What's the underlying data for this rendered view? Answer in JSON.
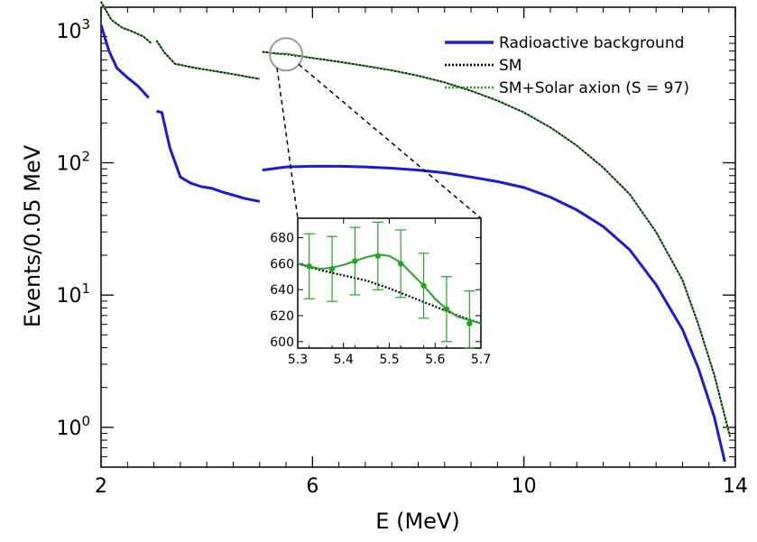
{
  "chart_data": {
    "type": "line",
    "xlabel": "E (MeV)",
    "ylabel": "Events/0.05 MeV",
    "xlim": [
      2,
      14
    ],
    "ylim": [
      0.5,
      1500
    ],
    "yscale": "log",
    "x_ticks": [
      2,
      6,
      10,
      14
    ],
    "y_ticks": [
      {
        "value": 1,
        "base": "10",
        "exp": "0"
      },
      {
        "value": 10,
        "base": "10",
        "exp": "1"
      },
      {
        "value": 100,
        "base": "10",
        "exp": "2"
      },
      {
        "value": 1000,
        "base": "10",
        "exp": "3"
      }
    ],
    "legend_position": "top-right",
    "series": [
      {
        "name": "Radioactive background",
        "color": "#1a1adb",
        "style": "solid",
        "segments": [
          [
            [
              2.0,
              1100
            ],
            [
              2.15,
              700
            ],
            [
              2.3,
              520
            ],
            [
              2.5,
              440
            ],
            [
              2.7,
              380
            ],
            [
              2.9,
              310
            ]
          ],
          [
            [
              3.05,
              245
            ],
            [
              3.15,
              240
            ],
            [
              3.3,
              130
            ],
            [
              3.5,
              78
            ],
            [
              3.7,
              70
            ],
            [
              3.9,
              66
            ],
            [
              4.1,
              64
            ],
            [
              4.3,
              60
            ],
            [
              4.5,
              57
            ],
            [
              4.7,
              54
            ],
            [
              4.9,
              52
            ],
            [
              5.0,
              51
            ]
          ],
          [
            [
              5.05,
              88
            ],
            [
              5.5,
              93
            ],
            [
              6.0,
              94
            ],
            [
              6.5,
              94
            ],
            [
              7.0,
              93
            ],
            [
              7.5,
              91
            ],
            [
              8.0,
              88
            ],
            [
              8.5,
              84
            ],
            [
              9.0,
              78
            ],
            [
              9.5,
              72
            ],
            [
              10.0,
              65
            ],
            [
              10.5,
              55
            ],
            [
              11.0,
              44
            ],
            [
              11.5,
              33
            ],
            [
              12.0,
              22
            ],
            [
              12.5,
              12
            ],
            [
              13.0,
              5.5
            ],
            [
              13.3,
              2.8
            ],
            [
              13.6,
              1.2
            ],
            [
              13.8,
              0.55
            ]
          ]
        ]
      },
      {
        "name": "SM",
        "color": "#000000",
        "style": "dotted",
        "segments": [
          [
            [
              2.0,
              1650
            ],
            [
              2.1,
              1400
            ],
            [
              2.2,
              1200
            ],
            [
              2.4,
              1050
            ],
            [
              2.6,
              980
            ],
            [
              2.8,
              900
            ],
            [
              2.95,
              800
            ]
          ],
          [
            [
              3.05,
              840
            ],
            [
              3.2,
              680
            ],
            [
              3.4,
              560
            ],
            [
              3.8,
              520
            ],
            [
              4.2,
              490
            ],
            [
              4.6,
              460
            ],
            [
              5.0,
              430
            ]
          ],
          [
            [
              5.05,
              690
            ],
            [
              5.5,
              660
            ],
            [
              6.0,
              620
            ],
            [
              6.5,
              580
            ],
            [
              7.0,
              540
            ],
            [
              7.5,
              500
            ],
            [
              8.0,
              455
            ],
            [
              8.5,
              405
            ],
            [
              9.0,
              350
            ],
            [
              9.5,
              295
            ],
            [
              10.0,
              240
            ],
            [
              10.5,
              185
            ],
            [
              11.0,
              135
            ],
            [
              11.5,
              92
            ],
            [
              12.0,
              58
            ],
            [
              12.5,
              30
            ],
            [
              13.0,
              13
            ],
            [
              13.3,
              6
            ],
            [
              13.6,
              2.5
            ],
            [
              13.9,
              0.85
            ]
          ]
        ]
      },
      {
        "name": "SM+Solar axion (S = 97)",
        "color": "#22a622",
        "style": "dotted",
        "segments": [
          [
            [
              2.0,
              1650
            ],
            [
              2.1,
              1400
            ],
            [
              2.2,
              1200
            ],
            [
              2.4,
              1050
            ],
            [
              2.6,
              980
            ],
            [
              2.8,
              900
            ],
            [
              2.95,
              800
            ]
          ],
          [
            [
              3.05,
              840
            ],
            [
              3.2,
              680
            ],
            [
              3.4,
              560
            ],
            [
              3.8,
              520
            ],
            [
              4.2,
              490
            ],
            [
              4.6,
              460
            ],
            [
              5.0,
              430
            ]
          ],
          [
            [
              5.05,
              690
            ],
            [
              5.35,
              665
            ],
            [
              5.5,
              670
            ],
            [
              5.7,
              650
            ],
            [
              6.0,
              620
            ],
            [
              6.5,
              580
            ],
            [
              7.0,
              540
            ],
            [
              7.5,
              500
            ],
            [
              8.0,
              455
            ],
            [
              8.5,
              405
            ],
            [
              9.0,
              350
            ],
            [
              9.5,
              295
            ],
            [
              10.0,
              240
            ],
            [
              10.5,
              185
            ],
            [
              11.0,
              135
            ],
            [
              11.5,
              92
            ],
            [
              12.0,
              58
            ],
            [
              12.5,
              30
            ],
            [
              13.0,
              13
            ],
            [
              13.3,
              6
            ],
            [
              13.6,
              2.5
            ],
            [
              13.9,
              0.85
            ]
          ]
        ]
      }
    ],
    "legend": [
      {
        "label": "Radioactive background",
        "color": "#1a1adb",
        "style": "solid"
      },
      {
        "label": "SM",
        "color": "#000000",
        "style": "dotted"
      },
      {
        "label": "SM+Solar axion (S = 97)",
        "color": "#22a622",
        "style": "dotted"
      }
    ],
    "zoom_marker": {
      "x": 5.5,
      "y": 660
    },
    "inset": {
      "xlim": [
        5.3,
        5.7
      ],
      "ylim": [
        595,
        695
      ],
      "x_ticks": [
        "5.3",
        "5.4",
        "5.5",
        "5.6",
        "5.7"
      ],
      "y_ticks": [
        "600",
        "620",
        "640",
        "660",
        "680"
      ],
      "sm_line": [
        [
          5.3,
          660
        ],
        [
          5.35,
          655
        ],
        [
          5.4,
          651
        ],
        [
          5.45,
          647
        ],
        [
          5.5,
          641
        ],
        [
          5.55,
          634
        ],
        [
          5.6,
          627
        ],
        [
          5.65,
          620
        ],
        [
          5.7,
          614
        ]
      ],
      "axion_curve": [
        [
          5.3,
          660
        ],
        [
          5.35,
          656
        ],
        [
          5.375,
          657
        ],
        [
          5.4,
          659
        ],
        [
          5.425,
          662
        ],
        [
          5.45,
          665
        ],
        [
          5.475,
          667
        ],
        [
          5.5,
          666
        ],
        [
          5.525,
          661
        ],
        [
          5.55,
          652
        ],
        [
          5.575,
          643
        ],
        [
          5.6,
          633
        ],
        [
          5.625,
          625
        ],
        [
          5.65,
          619
        ],
        [
          5.7,
          614
        ]
      ],
      "axion_points": [
        {
          "x": 5.325,
          "y": 658,
          "err": 25
        },
        {
          "x": 5.375,
          "y": 656,
          "err": 25
        },
        {
          "x": 5.425,
          "y": 662,
          "err": 26
        },
        {
          "x": 5.475,
          "y": 666,
          "err": 26
        },
        {
          "x": 5.525,
          "y": 660,
          "err": 26
        },
        {
          "x": 5.575,
          "y": 643,
          "err": 25
        },
        {
          "x": 5.625,
          "y": 625,
          "err": 25
        },
        {
          "x": 5.675,
          "y": 614,
          "err": 25
        }
      ]
    }
  }
}
